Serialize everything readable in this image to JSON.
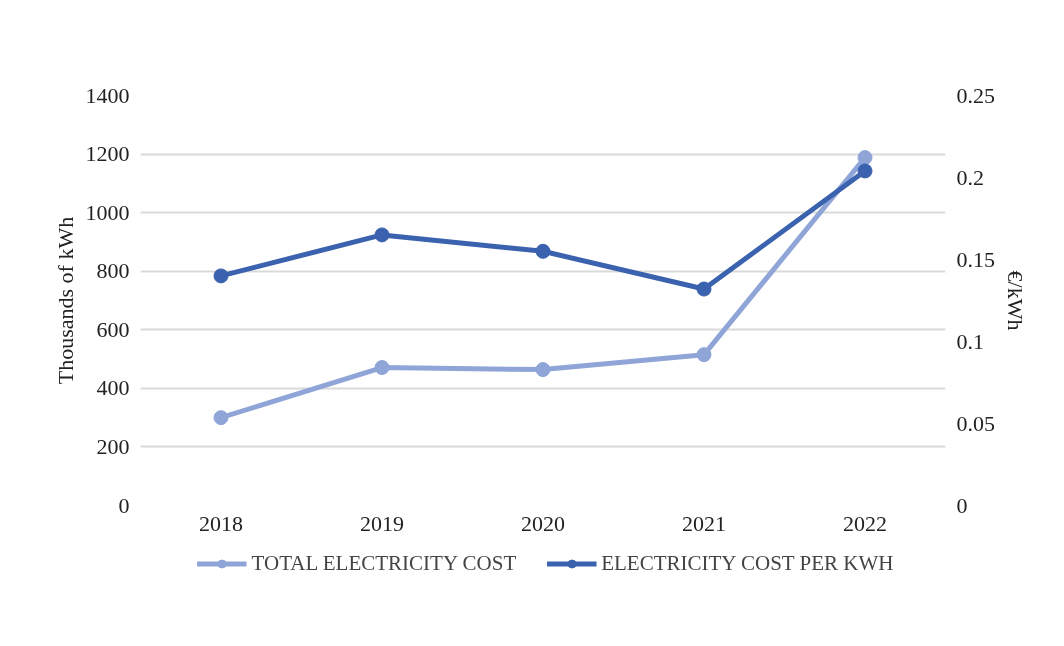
{
  "chart_data": {
    "type": "line",
    "categories": [
      "2018",
      "2019",
      "2020",
      "2021",
      "2022"
    ],
    "ylabel": "Thousands of kWh",
    "y2label": "€/kWh",
    "ylim": [
      0,
      1400
    ],
    "yticks": [
      0,
      200,
      400,
      600,
      800,
      1000,
      1200,
      1400
    ],
    "y2lim": [
      0,
      0.25
    ],
    "y2ticks": [
      0,
      0.05,
      0.1,
      0.15,
      0.2,
      0.25
    ],
    "series": [
      {
        "name": "TOTAL ELECTRICITY COST",
        "color": "#8fa5d8",
        "values": [
          300,
          471,
          464,
          515,
          1188
        ]
      },
      {
        "name": "ELECTRICITY COST PER KWH",
        "color": "#3a62ae",
        "axis": "y2",
        "values": [
          0.14,
          0.165,
          0.155,
          0.132,
          0.204
        ]
      }
    ],
    "grid": "y",
    "legend": "bottom",
    "marker": "circle",
    "line_style": "solid"
  }
}
